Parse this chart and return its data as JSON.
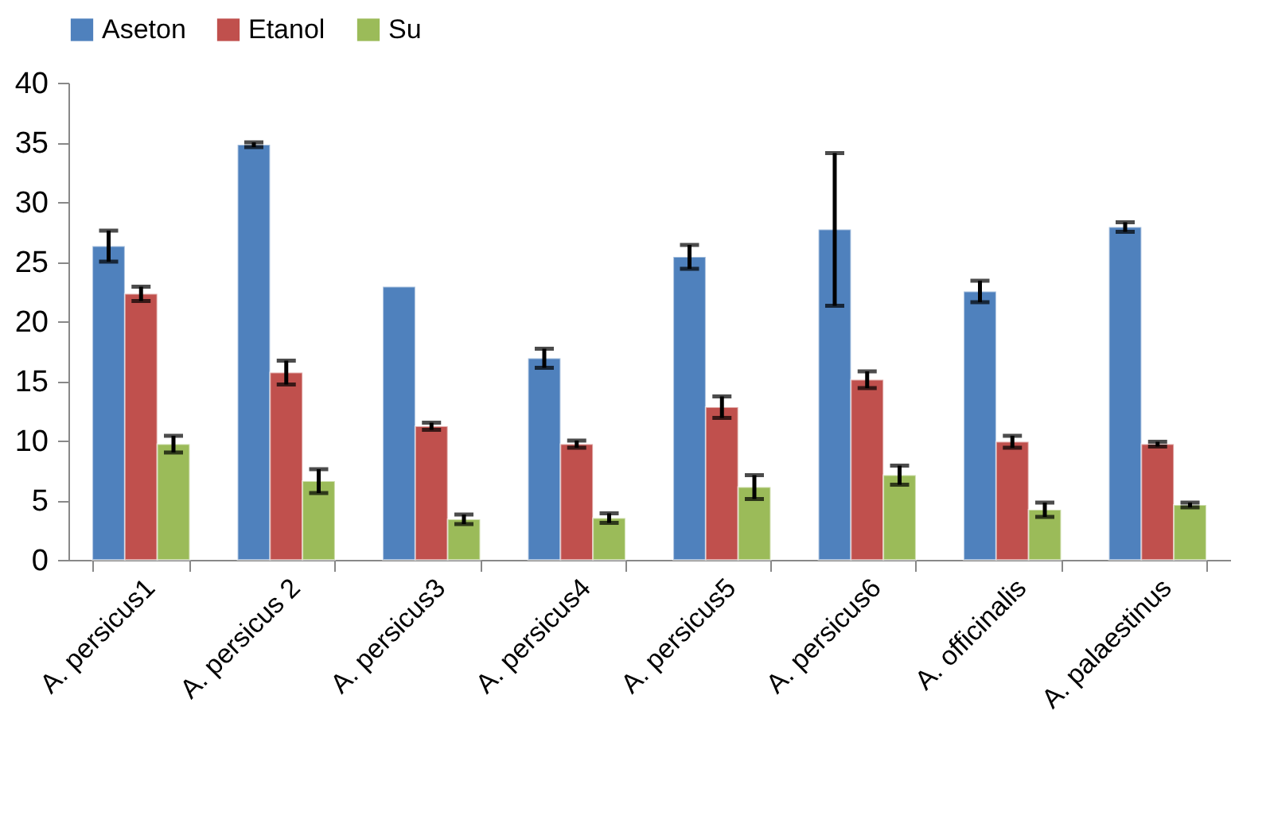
{
  "chart_data": {
    "type": "bar",
    "categories": [
      "A. persicus1",
      "A. persicus 2",
      "A. persicus3",
      "A. persicus4",
      "A. persicus5",
      "A. persicus6",
      "A. officinalis",
      "A. palaestinus"
    ],
    "series": [
      {
        "name": "Aseton",
        "color": "#4f81bd",
        "values": [
          26.3,
          34.8,
          22.9,
          16.9,
          25.4,
          27.7,
          22.5,
          27.9
        ],
        "errors": [
          1.3,
          0.2,
          null,
          0.8,
          1.0,
          6.4,
          0.9,
          0.4
        ]
      },
      {
        "name": "Etanol",
        "color": "#c0504d",
        "values": [
          22.3,
          15.7,
          11.2,
          9.7,
          12.8,
          15.1,
          9.9,
          9.7
        ],
        "errors": [
          0.6,
          1.0,
          0.3,
          0.3,
          0.9,
          0.7,
          0.5,
          0.2
        ]
      },
      {
        "name": "Su",
        "color": "#9bbb59",
        "values": [
          9.7,
          6.6,
          3.4,
          3.5,
          6.1,
          7.1,
          4.2,
          4.6
        ],
        "errors": [
          0.7,
          1.0,
          0.4,
          0.4,
          1.0,
          0.8,
          0.6,
          0.2
        ]
      }
    ],
    "ylim": [
      0,
      40
    ],
    "yticks": [
      0,
      5,
      10,
      15,
      20,
      25,
      30,
      35,
      40
    ],
    "grid": false,
    "legend": "top"
  }
}
